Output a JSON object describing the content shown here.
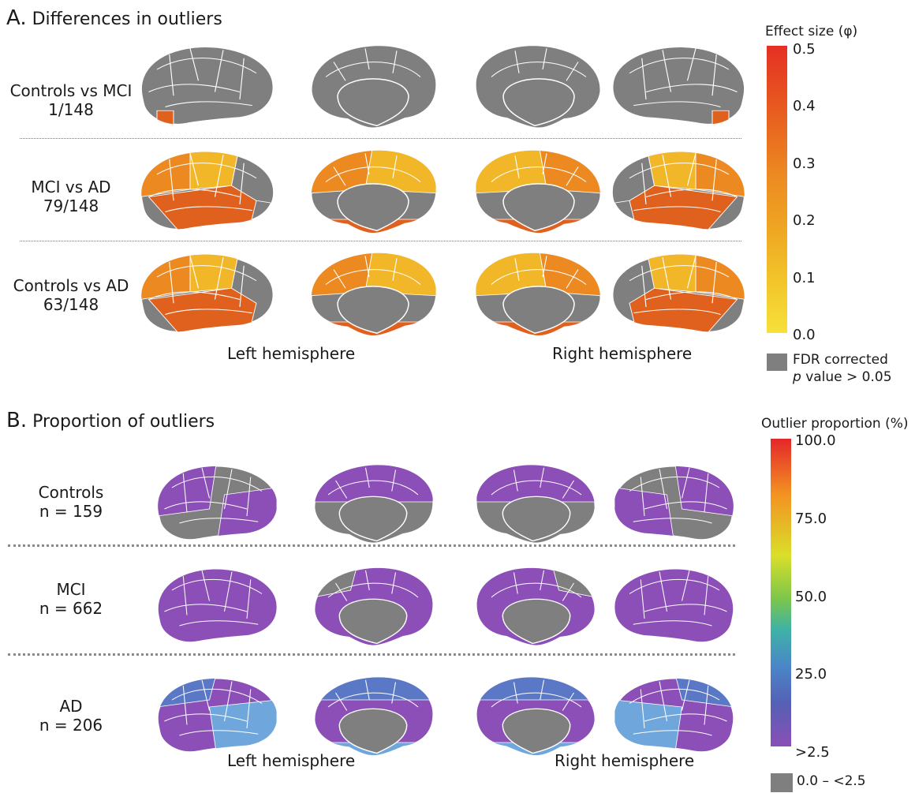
{
  "panel_a": {
    "letter": "A.",
    "title": "Differences in outliers",
    "rows": [
      {
        "line1": "Controls vs MCI",
        "line2": "1/148",
        "fills": [
          "gray",
          "gray",
          "gray",
          "gray"
        ]
      },
      {
        "line1": "MCI vs AD",
        "line2": "79/148",
        "fills": [
          "mixed",
          "mixed",
          "mixed",
          "mixed"
        ]
      },
      {
        "line1": "Controls vs AD",
        "line2": "63/148",
        "fills": [
          "mixed",
          "mixed",
          "gray-partial",
          "mixed"
        ]
      }
    ],
    "hemisphere_left": "Left hemisphere",
    "hemisphere_right": "Right hemisphere",
    "legend": {
      "title": "Effect size (φ)",
      "ticks": [
        "0.5",
        "0.4",
        "0.3",
        "0.2",
        "0.1",
        "0.0"
      ],
      "colors": [
        "#e53023",
        "#e8611f",
        "#ec8a21",
        "#efa823",
        "#f2c52a",
        "#f7e03a"
      ],
      "gray_label_line1": "FDR corrected",
      "gray_label_italic": "p",
      "gray_label_line2": " value > 0.05"
    }
  },
  "panel_b": {
    "letter": "B.",
    "title": "Proportion of outliers",
    "rows": [
      {
        "line1": "Controls",
        "line2": "n = 159"
      },
      {
        "line1": "MCI",
        "line2": "n = 662"
      },
      {
        "line1": "AD",
        "line2": "n = 206"
      }
    ],
    "hemisphere_left": "Left hemisphere",
    "hemisphere_right": "Right hemisphere",
    "legend": {
      "title": "Outlier proportion (%)",
      "ticks": [
        "100.0",
        "75.0",
        "50.0",
        "25.0",
        ">2.5"
      ],
      "colors": [
        "#e3262a",
        "#f39222",
        "#d9df2a",
        "#7cc64a",
        "#3fb2a6",
        "#4a86c8",
        "#5560b4",
        "#8b4fb7"
      ],
      "gray_label": "0.0 – <2.5"
    }
  },
  "palette": {
    "gray": "#7f7f7f",
    "orange": "#ec8a21",
    "dark_orange": "#e0611e",
    "yellow": "#f2b729",
    "purple": "#8b4fb7",
    "blue": "#5a78c6",
    "light_blue": "#6fa7dc"
  }
}
